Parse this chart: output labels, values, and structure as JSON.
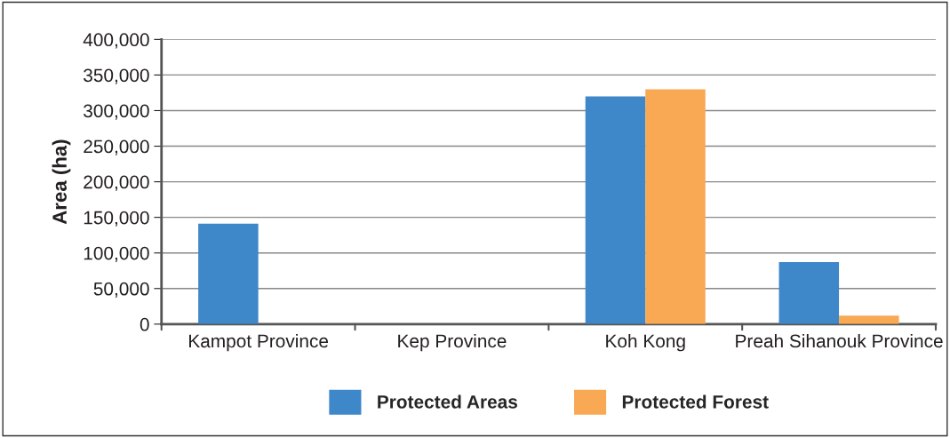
{
  "chart_data": {
    "type": "bar",
    "ylabel": "Area (ha)",
    "categories": [
      "Kampot Province",
      "Kep Province",
      "Koh Kong",
      "Preah Sihanouk Province"
    ],
    "series": [
      {
        "name": "Protected Areas",
        "color": "#3e87c9",
        "values": [
          141000,
          null,
          320000,
          87000
        ]
      },
      {
        "name": "Protected Forest",
        "color": "#f9a953",
        "values": [
          null,
          null,
          330000,
          12000
        ]
      }
    ],
    "ylim": [
      0,
      400000
    ],
    "yticks": [
      {
        "value": 0,
        "label": "0"
      },
      {
        "value": 50000,
        "label": "50,000"
      },
      {
        "value": 100000,
        "label": "100,000"
      },
      {
        "value": 150000,
        "label": "150,000"
      },
      {
        "value": 200000,
        "label": "200,000"
      },
      {
        "value": 250000,
        "label": "250,000"
      },
      {
        "value": 300000,
        "label": "300,000"
      },
      {
        "value": 350000,
        "label": "350,000"
      },
      {
        "value": 400000,
        "label": "400,000"
      }
    ],
    "grid": "y",
    "legend": "bottom"
  }
}
